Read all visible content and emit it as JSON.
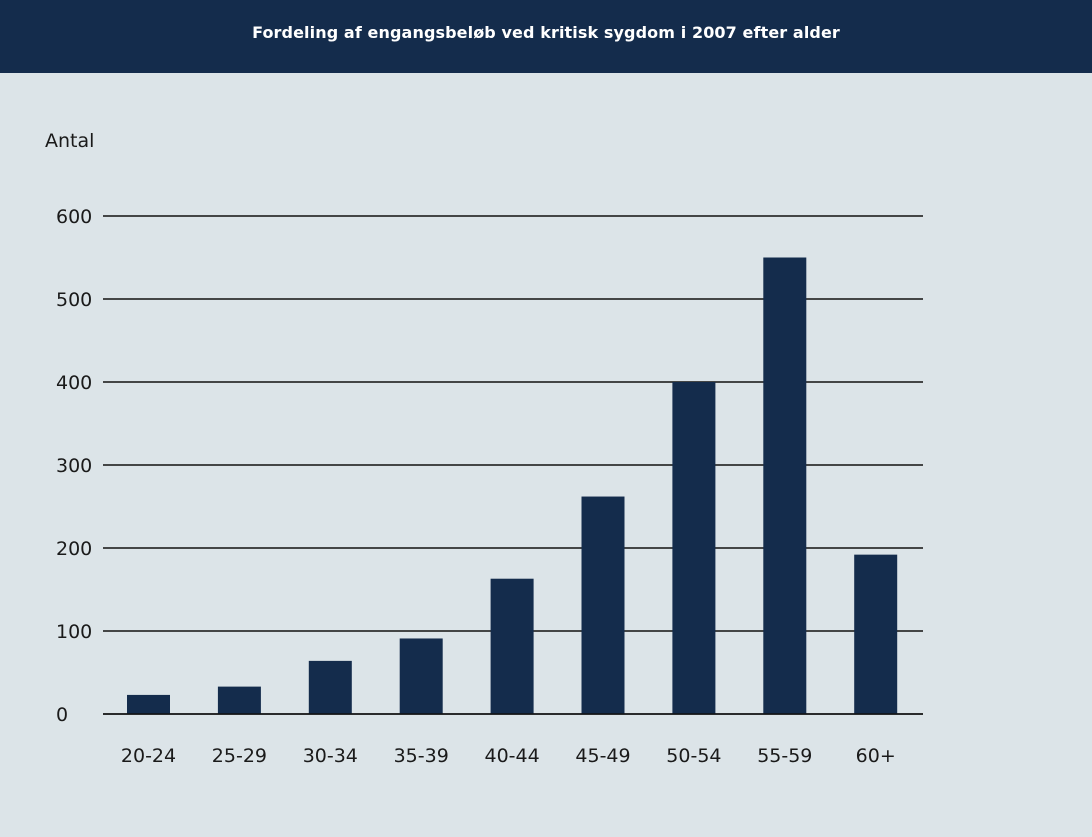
{
  "chart_data": {
    "type": "bar",
    "title": "Fordeling af engangsbeløb ved kritisk sygdom i 2007 efter alder",
    "xlabel": "",
    "ylabel": "Antal",
    "categories": [
      "20-24",
      "25-29",
      "30-34",
      "35-39",
      "40-44",
      "45-49",
      "50-54",
      "55-59",
      "60+"
    ],
    "values": [
      23,
      33,
      64,
      91,
      163,
      262,
      400,
      550,
      192
    ],
    "ylim": [
      0,
      600
    ],
    "yticks": [
      0,
      100,
      200,
      300,
      400,
      500,
      600
    ],
    "yticks_labels": [
      "0",
      "100",
      "200",
      "300",
      "400",
      "500",
      "600"
    ],
    "grid": true,
    "legend": "none",
    "colors": {
      "bar": "#142c4c",
      "background": "#dce4e8",
      "title_bar": "#142c4c",
      "title_text": "#ffffff",
      "grid": "#111111"
    }
  }
}
